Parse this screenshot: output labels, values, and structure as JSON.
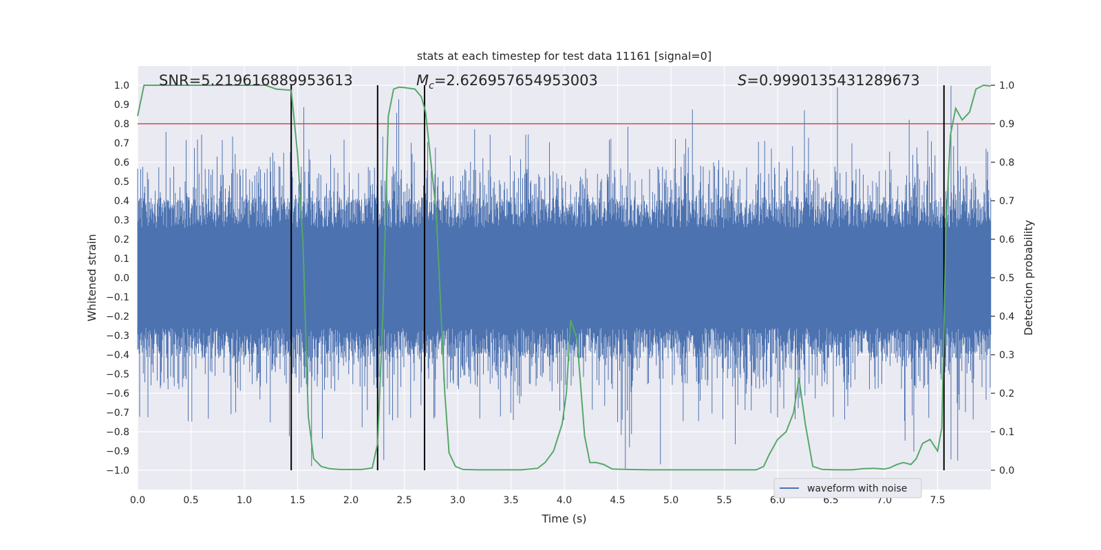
{
  "chart_data": {
    "type": "line",
    "title": "stats at each timestep for test data 11161 [signal=0]",
    "xlabel": "Time (s)",
    "ylabel_left": "Whitened strain",
    "ylabel_right": "Detection probability",
    "xlim": [
      0.0,
      8.0
    ],
    "ylim_left": [
      -1.1,
      1.1
    ],
    "ylim_right": [
      -0.05,
      1.05
    ],
    "x_ticks": [
      "0.0",
      "0.5",
      "1.0",
      "1.5",
      "2.0",
      "2.5",
      "3.0",
      "3.5",
      "4.0",
      "4.5",
      "5.0",
      "5.5",
      "6.0",
      "6.5",
      "7.0",
      "7.5"
    ],
    "y_left_ticks": [
      "−1.0",
      "−0.9",
      "−0.8",
      "−0.7",
      "−0.6",
      "−0.5",
      "−0.4",
      "−0.3",
      "−0.2",
      "−0.1",
      "0.0",
      "0.1",
      "0.2",
      "0.3",
      "0.4",
      "0.5",
      "0.6",
      "0.7",
      "0.8",
      "0.9",
      "1.0"
    ],
    "y_right_ticks": [
      "0.0",
      "0.1",
      "0.2",
      "0.3",
      "0.4",
      "0.5",
      "0.6",
      "0.7",
      "0.8",
      "0.9",
      "1.0"
    ],
    "grid": true,
    "threshold": {
      "axis": "right",
      "value": 0.9,
      "color": "#c44e52"
    },
    "vertical_lines": [
      1.44,
      2.25,
      2.69,
      7.56
    ],
    "annotations": {
      "snr": "SNR=5.219616889953613",
      "mc_symbol": "M",
      "mc_sub": "c",
      "mc_value": "=2.626957654953003",
      "s_symbol": "S",
      "s_value": "=0.9990135431289673"
    },
    "legend": {
      "position": "lower-right",
      "label": "waveform with noise"
    },
    "series": [
      {
        "name": "waveform with noise",
        "axis": "left",
        "color": "#4c72b0",
        "style": "dense noise, roughly ±0.4 with spikes up to ±1.0",
        "x_start": 0.0,
        "x_end": 8.0
      },
      {
        "name": "detection probability",
        "axis": "right",
        "color": "#55a868",
        "x": [
          0.0,
          0.06,
          0.2,
          0.4,
          0.6,
          0.8,
          1.0,
          1.2,
          1.3,
          1.44,
          1.5,
          1.55,
          1.6,
          1.65,
          1.72,
          1.8,
          1.9,
          2.0,
          2.1,
          2.2,
          2.25,
          2.3,
          2.35,
          2.4,
          2.45,
          2.5,
          2.6,
          2.66,
          2.7,
          2.8,
          2.88,
          2.92,
          2.98,
          3.05,
          3.2,
          3.4,
          3.6,
          3.75,
          3.82,
          3.9,
          3.98,
          4.02,
          4.06,
          4.12,
          4.19,
          4.24,
          4.3,
          4.37,
          4.45,
          4.6,
          4.8,
          5.0,
          5.2,
          5.4,
          5.6,
          5.8,
          5.87,
          5.92,
          6.0,
          6.08,
          6.15,
          6.2,
          6.26,
          6.33,
          6.42,
          6.55,
          6.7,
          6.8,
          6.9,
          7.0,
          7.05,
          7.12,
          7.18,
          7.25,
          7.3,
          7.36,
          7.43,
          7.5,
          7.54,
          7.58,
          7.62,
          7.67,
          7.73,
          7.8,
          7.86,
          7.93,
          8.0
        ],
        "values": [
          0.92,
          1.0,
          1.0,
          1.0,
          1.0,
          1.0,
          1.0,
          1.0,
          0.99,
          0.987,
          0.82,
          0.59,
          0.14,
          0.03,
          0.01,
          0.004,
          0.002,
          0.002,
          0.002,
          0.006,
          0.07,
          0.41,
          0.92,
          0.99,
          0.995,
          0.994,
          0.99,
          0.97,
          0.93,
          0.67,
          0.2,
          0.045,
          0.01,
          0.002,
          0.001,
          0.001,
          0.001,
          0.005,
          0.02,
          0.05,
          0.12,
          0.2,
          0.39,
          0.34,
          0.09,
          0.02,
          0.02,
          0.015,
          0.003,
          0.002,
          0.001,
          0.001,
          0.001,
          0.001,
          0.001,
          0.001,
          0.01,
          0.04,
          0.08,
          0.1,
          0.15,
          0.24,
          0.12,
          0.01,
          0.002,
          0.001,
          0.001,
          0.004,
          0.005,
          0.003,
          0.006,
          0.015,
          0.02,
          0.015,
          0.03,
          0.07,
          0.08,
          0.05,
          0.11,
          0.64,
          0.87,
          0.94,
          0.91,
          0.93,
          0.99,
          1.0,
          0.998
        ]
      }
    ]
  }
}
